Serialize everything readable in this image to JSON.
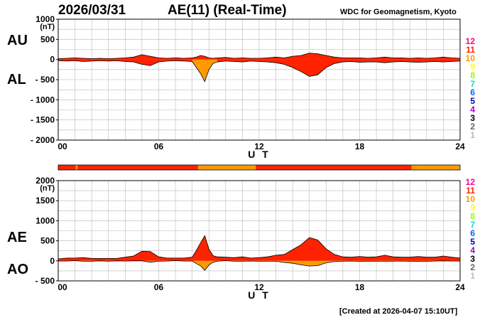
{
  "header": {
    "date": "2026/03/31",
    "title": "AE(11) (Real-Time)",
    "source": "WDC for Geomagnetism, Kyoto",
    "created": "[Created at 2026-04-07 15:10UT]"
  },
  "station_scale": {
    "labels": [
      "12",
      "11",
      "10",
      "9",
      "8",
      "7",
      "6",
      "5",
      "4",
      "3",
      "2",
      "1"
    ],
    "colors": [
      "#ff0090",
      "#ff2200",
      "#ff9900",
      "#ffff00",
      "#99ff00",
      "#00dddd",
      "#0066ff",
      "#0000bb",
      "#aa00cc",
      "#000000",
      "#666666",
      "#bbbbbb"
    ]
  },
  "stations_bar": {
    "segments": [
      {
        "start": 0,
        "end": 1.05,
        "color": "#ff2200"
      },
      {
        "start": 1.05,
        "end": 1.15,
        "color": "#ff9900"
      },
      {
        "start": 1.15,
        "end": 8.35,
        "color": "#ff2200"
      },
      {
        "start": 8.35,
        "end": 11.8,
        "color": "#ff9900"
      },
      {
        "start": 11.8,
        "end": 21.1,
        "color": "#ff2200"
      },
      {
        "start": 21.1,
        "end": 21.6,
        "color": "#ff9900"
      },
      {
        "start": 21.6,
        "end": 24,
        "color": "#ff9900"
      }
    ]
  },
  "chart_data": [
    {
      "type": "area",
      "name": "AU / AL panel",
      "ylabel": "(nT)",
      "xlabel": "U T",
      "series_labels": [
        "AU",
        "AL"
      ],
      "ylim": [
        -2000,
        1000
      ],
      "yticks": [
        1000,
        500,
        0,
        -500,
        -1000,
        -1500,
        -2000
      ],
      "ytick_labels": [
        "1000",
        "500",
        "0",
        "- 500",
        "- 1000",
        "- 1500",
        "- 2000"
      ],
      "xlim": [
        0,
        24
      ],
      "xticks": [
        0,
        6,
        12,
        18,
        24
      ],
      "xtick_labels": [
        "00",
        "06",
        "12",
        "18",
        "24"
      ],
      "grid": true,
      "x": [
        0,
        0.5,
        1,
        1.5,
        2,
        2.5,
        3,
        3.5,
        4,
        4.5,
        5,
        5.5,
        6,
        6.5,
        7,
        7.5,
        8,
        8.25,
        8.5,
        8.75,
        9,
        9.25,
        9.5,
        10,
        10.5,
        11,
        11.5,
        12,
        12.5,
        13,
        13.5,
        14,
        14.5,
        15,
        15.5,
        16,
        16.5,
        17,
        17.5,
        18,
        18.5,
        19,
        19.5,
        20,
        20.5,
        21,
        21.5,
        22,
        22.5,
        23,
        23.5,
        24
      ],
      "series": [
        {
          "name": "AU",
          "values": [
            20,
            30,
            40,
            30,
            20,
            30,
            20,
            30,
            40,
            60,
            120,
            80,
            40,
            30,
            40,
            30,
            40,
            60,
            100,
            80,
            40,
            30,
            40,
            50,
            30,
            40,
            30,
            30,
            40,
            60,
            40,
            80,
            100,
            160,
            140,
            100,
            60,
            40,
            40,
            40,
            30,
            40,
            60,
            40,
            40,
            30,
            40,
            30,
            40,
            60,
            40,
            30
          ]
        },
        {
          "name": "AL",
          "values": [
            -30,
            -40,
            -30,
            -50,
            -40,
            -30,
            -40,
            -30,
            -50,
            -60,
            -120,
            -150,
            -60,
            -40,
            -30,
            -40,
            -50,
            -200,
            -350,
            -550,
            -250,
            -100,
            -60,
            -40,
            -50,
            -60,
            -40,
            -50,
            -60,
            -80,
            -120,
            -200,
            -300,
            -420,
            -380,
            -200,
            -100,
            -60,
            -50,
            -70,
            -60,
            -60,
            -80,
            -60,
            -50,
            -60,
            -70,
            -60,
            -50,
            -60,
            -50,
            -40
          ]
        }
      ]
    },
    {
      "type": "area",
      "name": "AE / AO panel",
      "ylabel": "(nT)",
      "xlabel": "U T",
      "series_labels": [
        "AE",
        "AO"
      ],
      "ylim": [
        -500,
        2000
      ],
      "yticks": [
        2000,
        1500,
        1000,
        500,
        0,
        -500
      ],
      "ytick_labels": [
        "2000",
        "1500",
        "1000",
        "500",
        "0",
        "- 500"
      ],
      "xlim": [
        0,
        24
      ],
      "xticks": [
        0,
        6,
        12,
        18,
        24
      ],
      "xtick_labels": [
        "00",
        "06",
        "12",
        "18",
        "24"
      ],
      "grid": true,
      "x": [
        0,
        0.5,
        1,
        1.5,
        2,
        2.5,
        3,
        3.5,
        4,
        4.5,
        5,
        5.5,
        6,
        6.5,
        7,
        7.5,
        8,
        8.25,
        8.5,
        8.75,
        9,
        9.25,
        9.5,
        10,
        10.5,
        11,
        11.5,
        12,
        12.5,
        13,
        13.5,
        14,
        14.5,
        15,
        15.5,
        16,
        16.5,
        17,
        17.5,
        18,
        18.5,
        19,
        19.5,
        20,
        20.5,
        21,
        21.5,
        22,
        22.5,
        23,
        23.5,
        24
      ],
      "series": [
        {
          "name": "AE",
          "values": [
            50,
            70,
            70,
            80,
            60,
            60,
            60,
            60,
            90,
            120,
            240,
            230,
            100,
            70,
            70,
            70,
            90,
            260,
            450,
            630,
            290,
            130,
            100,
            90,
            80,
            100,
            70,
            80,
            100,
            140,
            160,
            280,
            400,
            580,
            520,
            300,
            160,
            100,
            90,
            110,
            90,
            100,
            140,
            100,
            90,
            90,
            110,
            90,
            90,
            120,
            90,
            70
          ]
        },
        {
          "name": "AO",
          "values": [
            -5,
            -5,
            5,
            -10,
            -10,
            0,
            -10,
            0,
            -5,
            0,
            0,
            -35,
            -10,
            -5,
            5,
            -5,
            -5,
            -70,
            -125,
            -235,
            -105,
            -35,
            -10,
            5,
            -10,
            -10,
            -5,
            -10,
            -10,
            -10,
            -40,
            -60,
            -100,
            -130,
            -120,
            -50,
            -20,
            -10,
            -5,
            -15,
            -15,
            -10,
            -10,
            -10,
            -5,
            -15,
            -15,
            -15,
            -5,
            0,
            -5,
            -5
          ]
        }
      ]
    }
  ]
}
